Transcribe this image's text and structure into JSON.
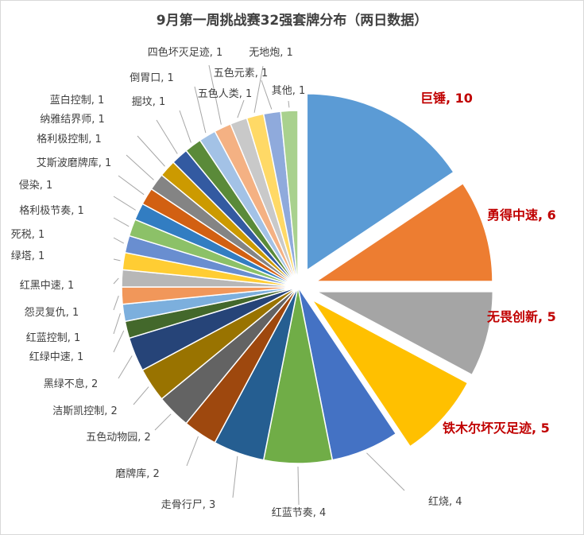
{
  "chart_data": {
    "type": "pie",
    "title": "9月第一周挑战赛32强套牌分布（两日数据）",
    "slices": [
      {
        "name": "巨锤",
        "value": 10,
        "color": "#5b9bd5",
        "highlight": true
      },
      {
        "name": "勇得中速",
        "value": 6,
        "color": "#ed7d31",
        "highlight": true
      },
      {
        "name": "无畏创新",
        "value": 5,
        "color": "#a5a5a5",
        "highlight": true
      },
      {
        "name": "铁木尔坏灭足迹",
        "value": 5,
        "color": "#ffc000",
        "highlight": true
      },
      {
        "name": "红烧",
        "value": 4,
        "color": "#4472c4"
      },
      {
        "name": "红蓝节奏",
        "value": 4,
        "color": "#70ad47"
      },
      {
        "name": "走骨行尸",
        "value": 3,
        "color": "#255e91"
      },
      {
        "name": "磨牌库",
        "value": 2,
        "color": "#9e480e"
      },
      {
        "name": "五色动物园",
        "value": 2,
        "color": "#636363"
      },
      {
        "name": "洁斯凯控制",
        "value": 2,
        "color": "#997300"
      },
      {
        "name": "黑绿不息",
        "value": 2,
        "color": "#264478"
      },
      {
        "name": "红绿中速",
        "value": 1,
        "color": "#43682b"
      },
      {
        "name": "红蓝控制",
        "value": 1,
        "color": "#7cafdd"
      },
      {
        "name": "怨灵复仇",
        "value": 1,
        "color": "#f1975a"
      },
      {
        "name": "红黑中速",
        "value": 1,
        "color": "#b7b7b7"
      },
      {
        "name": "绿塔",
        "value": 1,
        "color": "#ffcd33"
      },
      {
        "name": "死税",
        "value": 1,
        "color": "#698ed0"
      },
      {
        "name": "格利极节奏",
        "value": 1,
        "color": "#8cc168"
      },
      {
        "name": "侵染",
        "value": 1,
        "color": "#327dc2"
      },
      {
        "name": "艾斯波磨牌库",
        "value": 1,
        "color": "#d26012"
      },
      {
        "name": "格利极控制",
        "value": 1,
        "color": "#848484"
      },
      {
        "name": "纳雅结界师",
        "value": 1,
        "color": "#cc9a00"
      },
      {
        "name": "蓝白控制",
        "value": 1,
        "color": "#335aa1"
      },
      {
        "name": "掘坟",
        "value": 1,
        "color": "#5a8a39"
      },
      {
        "name": "倒胃口",
        "value": 1,
        "color": "#a3c2e6"
      },
      {
        "name": "四色坏灭足迹",
        "value": 1,
        "color": "#f4b183"
      },
      {
        "name": "五色人类",
        "value": 1,
        "color": "#c9c9c9"
      },
      {
        "name": "无地炮",
        "value": 1,
        "color": "#ffd966"
      },
      {
        "name": "五色元素",
        "value": 1,
        "color": "#8faadc"
      },
      {
        "name": "其他",
        "value": 1,
        "color": "#a9d18e"
      }
    ],
    "legend": "none"
  }
}
